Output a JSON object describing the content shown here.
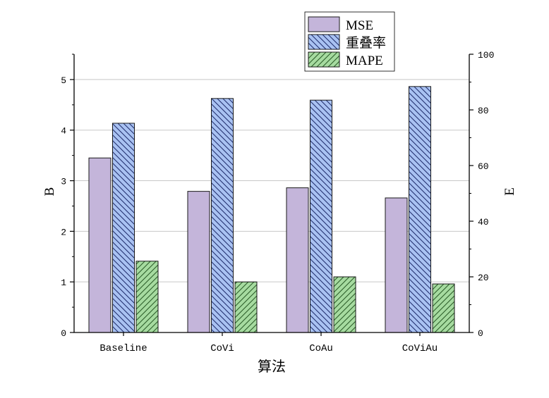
{
  "chart_data": {
    "type": "bar",
    "categories": [
      "Baseline",
      "CoVi",
      "CoAu",
      "CoViAu"
    ],
    "xlabel": "算法",
    "ylabel": "B",
    "ylabel_right": "E",
    "ylim": [
      0,
      5.5
    ],
    "ylim_right": [
      0,
      100
    ],
    "yticks": [
      0,
      1,
      2,
      3,
      4,
      5
    ],
    "yticks_right": [
      0,
      20,
      40,
      60,
      80,
      100
    ],
    "grid": true,
    "legend": "top",
    "series": [
      {
        "name": "MSE",
        "axis": "left",
        "values": [
          3.45,
          2.79,
          2.86,
          2.66
        ],
        "color": "#c4b5da",
        "pattern": "solid"
      },
      {
        "name": "重叠率",
        "axis": "right",
        "values": [
          75.2,
          84.1,
          83.5,
          88.4
        ],
        "color": "#a9c2f2",
        "pattern": "backslash-hatch",
        "hatch_color": "#1e2b6b"
      },
      {
        "name": "MAPE",
        "axis": "left",
        "values": [
          1.41,
          1.0,
          1.1,
          0.96
        ],
        "color": "#a6dba0",
        "pattern": "slash-hatch",
        "hatch_color": "#285a26"
      }
    ]
  }
}
